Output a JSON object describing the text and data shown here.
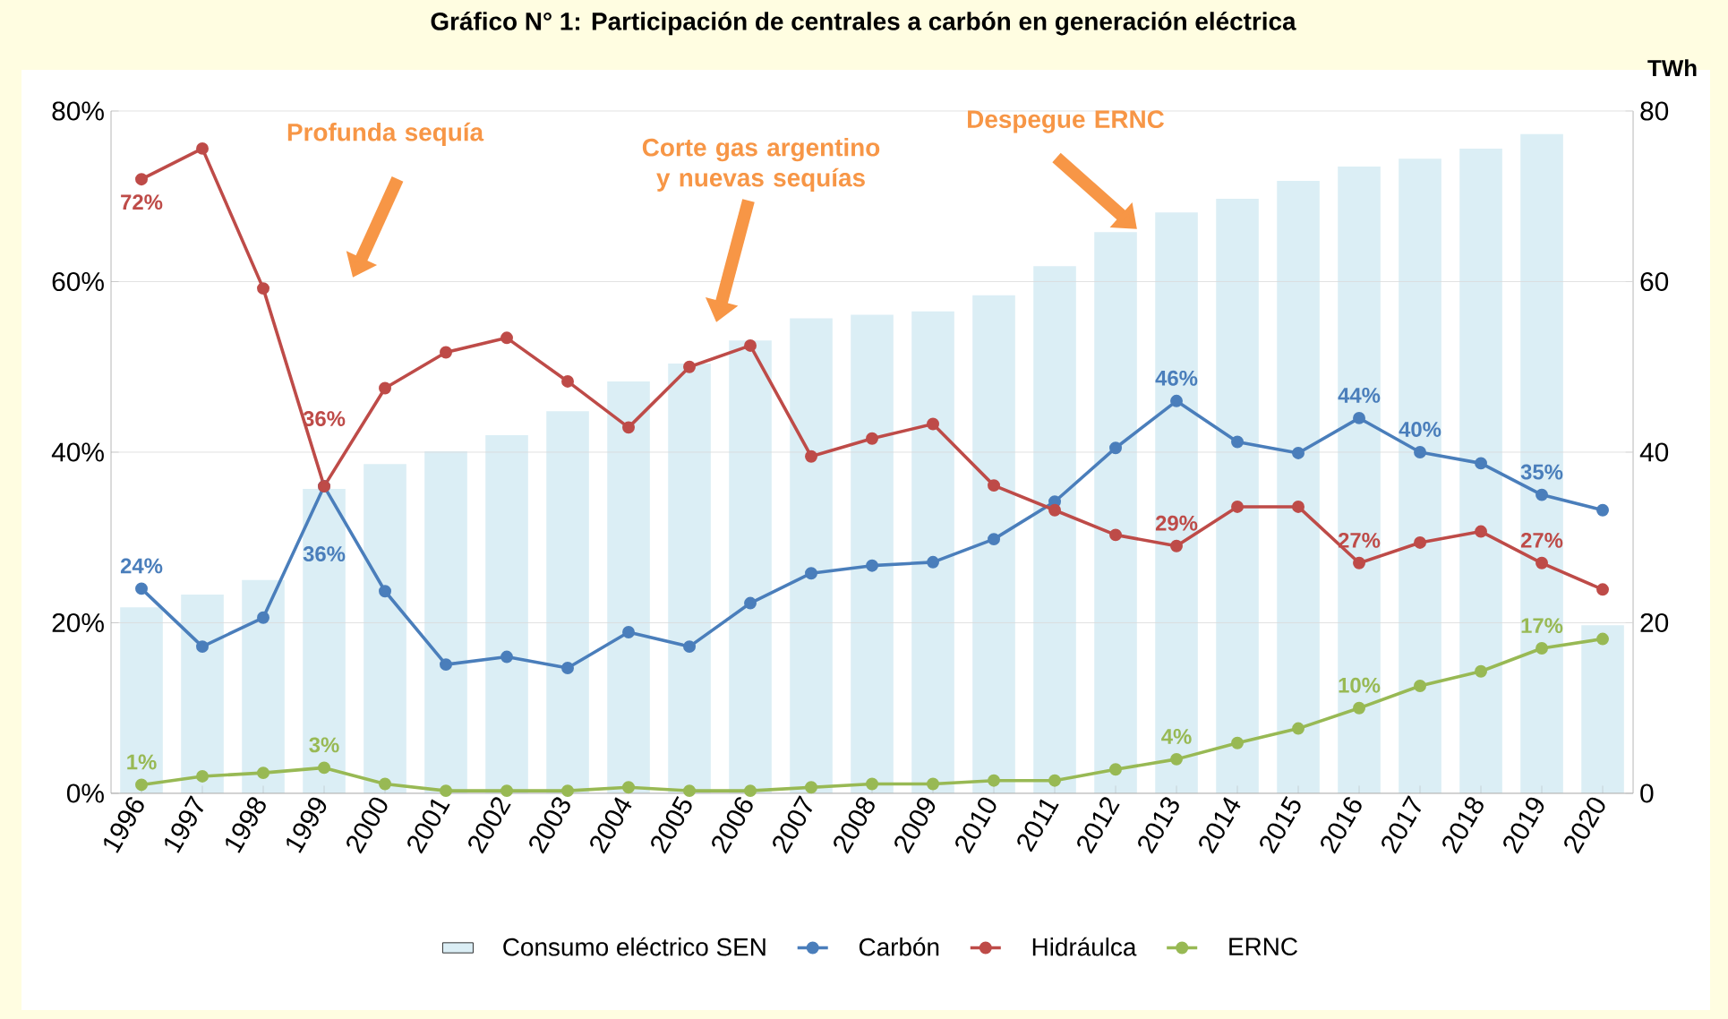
{
  "chart_data": {
    "type": "line",
    "title": "Gráfico N° 1: Participación de centrales a carbón en generación eléctrica",
    "y2label": "TWh",
    "categories": [
      "1996",
      "1997",
      "1998",
      "1999",
      "2000",
      "2001",
      "2002",
      "2003",
      "2004",
      "2005",
      "2006",
      "2007",
      "2008",
      "2009",
      "2010",
      "2011",
      "2012",
      "2013",
      "2014",
      "2015",
      "2016",
      "2017",
      "2018",
      "2019",
      "2020"
    ],
    "series": [
      {
        "name": "Consumo eléctrico SEN",
        "type": "bar",
        "axis": "y2",
        "color": "#dbeef5",
        "values": [
          21.8,
          23.3,
          25,
          35.7,
          38.6,
          40.1,
          42,
          44.8,
          48.3,
          50.4,
          53.1,
          55.7,
          56.1,
          56.5,
          58.4,
          61.8,
          65.8,
          68.1,
          69.7,
          71.8,
          73.5,
          74.4,
          75.6,
          77.3,
          19.7
        ]
      },
      {
        "name": "Carbón",
        "color": "#4a7ebb",
        "values": [
          24,
          17.2,
          20.6,
          36,
          23.7,
          15.1,
          16,
          14.7,
          18.9,
          17.2,
          22.3,
          25.8,
          26.7,
          27.1,
          29.8,
          34.2,
          40.5,
          46,
          41.2,
          39.9,
          44,
          40,
          38.7,
          35,
          33.2
        ],
        "value_labels": [
          "24%",
          null,
          null,
          "36%",
          null,
          null,
          null,
          null,
          null,
          null,
          null,
          null,
          null,
          null,
          null,
          null,
          null,
          "46%",
          null,
          null,
          "44%",
          "40%",
          null,
          "35%",
          null
        ]
      },
      {
        "name": "Hidráulca",
        "color": "#be4b48",
        "values": [
          72,
          75.6,
          59.2,
          36,
          47.5,
          51.7,
          53.4,
          48.3,
          42.9,
          50,
          52.5,
          39.5,
          41.6,
          43.3,
          36.1,
          33.2,
          30.3,
          29,
          33.6,
          33.6,
          27,
          29.4,
          30.7,
          27,
          23.9
        ],
        "value_labels": [
          "72%",
          null,
          null,
          "36%",
          null,
          null,
          null,
          null,
          null,
          null,
          null,
          null,
          null,
          null,
          null,
          null,
          null,
          "29%",
          null,
          null,
          "27%",
          null,
          null,
          "27%",
          null
        ]
      },
      {
        "name": "ERNC",
        "color": "#98b954",
        "values": [
          1,
          2,
          2.4,
          3,
          1.1,
          0.3,
          0.3,
          0.3,
          0.7,
          0.3,
          0.3,
          0.7,
          1.1,
          1.1,
          1.5,
          1.5,
          2.8,
          4,
          5.9,
          7.6,
          10,
          12.6,
          14.3,
          17,
          18.1
        ],
        "value_labels": [
          "1%",
          null,
          null,
          "3%",
          null,
          null,
          null,
          null,
          null,
          null,
          null,
          null,
          null,
          null,
          null,
          null,
          null,
          "4%",
          null,
          null,
          "10%",
          null,
          null,
          "17%",
          null
        ]
      }
    ],
    "ylim": [
      0,
      80
    ],
    "yticks": [
      {
        "value": 0,
        "label": "0%"
      },
      {
        "value": 20,
        "label": "20%"
      },
      {
        "value": 40,
        "label": "40%"
      },
      {
        "value": 60,
        "label": "60%"
      },
      {
        "value": 80,
        "label": "80%"
      }
    ],
    "y2lim": [
      0,
      80
    ],
    "y2ticks": [
      0,
      20,
      40,
      60,
      80
    ],
    "grid": "y",
    "legend": "bottom",
    "marker": "circle",
    "line_style": "solid",
    "annotations": [
      "Profunda sequía",
      "Corte gas argentino y nuevas sequías",
      "Despegue ERNC"
    ]
  }
}
